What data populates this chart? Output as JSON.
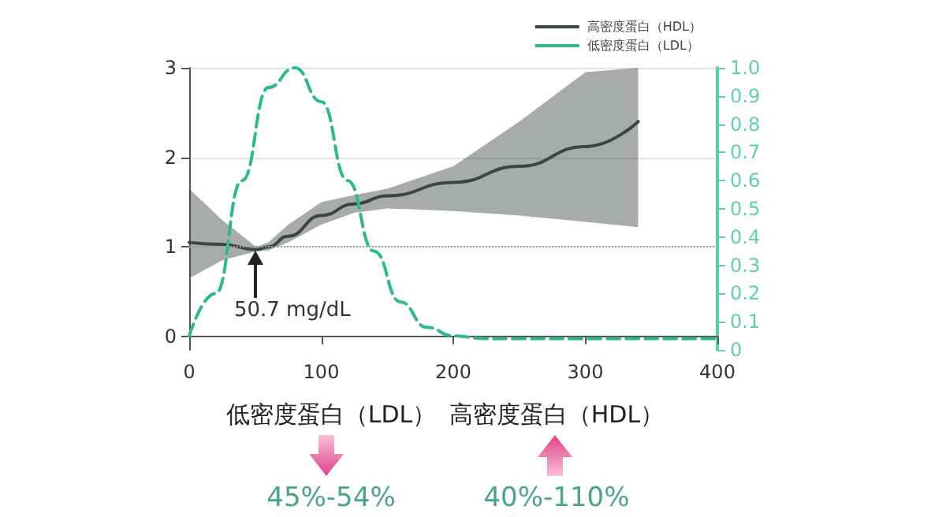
{
  "chart_data": {
    "type": "line",
    "xlim": [
      0,
      400
    ],
    "xticks": [
      0,
      100,
      200,
      300,
      400
    ],
    "ylim": [
      -0.15,
      3
    ],
    "yticks": [
      0,
      1,
      2,
      3
    ],
    "y2lim": [
      0,
      1
    ],
    "y2ticks": [
      {
        "value": 0,
        "label": "0"
      },
      0.1,
      0.2,
      0.3,
      0.4,
      0.5,
      0.6,
      0.7,
      0.8,
      0.9,
      {
        "value": 1,
        "label": "1.0"
      }
    ],
    "grid": "y",
    "legend": "top right",
    "marker": "none",
    "series": [
      {
        "name": "高密度蛋白（HDL）",
        "color": "#3b4644",
        "line_style": "solid",
        "x": [
          0,
          25,
          50.7,
          60,
          75,
          100,
          125,
          150,
          200,
          250,
          300,
          340
        ],
        "values": [
          1.05,
          1.03,
          0.97,
          1.0,
          1.12,
          1.35,
          1.48,
          1.57,
          1.72,
          1.9,
          2.12,
          2.4
        ],
        "lower": [
          0.65,
          0.85,
          0.95,
          0.96,
          1.05,
          1.25,
          1.38,
          1.43,
          1.4,
          1.35,
          1.28,
          1.22
        ],
        "upper": [
          1.65,
          1.3,
          1.0,
          1.05,
          1.25,
          1.5,
          1.58,
          1.65,
          1.9,
          2.4,
          2.95,
          3.0
        ]
      },
      {
        "name": "低密度蛋白（LDL）",
        "color": "#2fb88a",
        "line_style": "dashed",
        "axis": "y2",
        "x": [
          0,
          20,
          40,
          60,
          80,
          100,
          120,
          140,
          160,
          180,
          200,
          225,
          250,
          300,
          400
        ],
        "values": [
          0.05,
          0.2,
          0.6,
          0.93,
          1.0,
          0.88,
          0.6,
          0.35,
          0.17,
          0.08,
          0.05,
          0.04,
          0.04,
          0.04,
          0.04
        ]
      }
    ],
    "ref_lines": [
      {
        "axis": "y",
        "value": 1,
        "line_style": "dotted",
        "color": "#9aa6a4"
      }
    ],
    "annotations": [
      {
        "text": "50.7 mg/dL",
        "x": 50.7,
        "y": 1
      },
      "低密度蛋白（LDL）",
      "高密度蛋白（HDL）",
      "45%-54%",
      "40%-110%"
    ]
  }
}
